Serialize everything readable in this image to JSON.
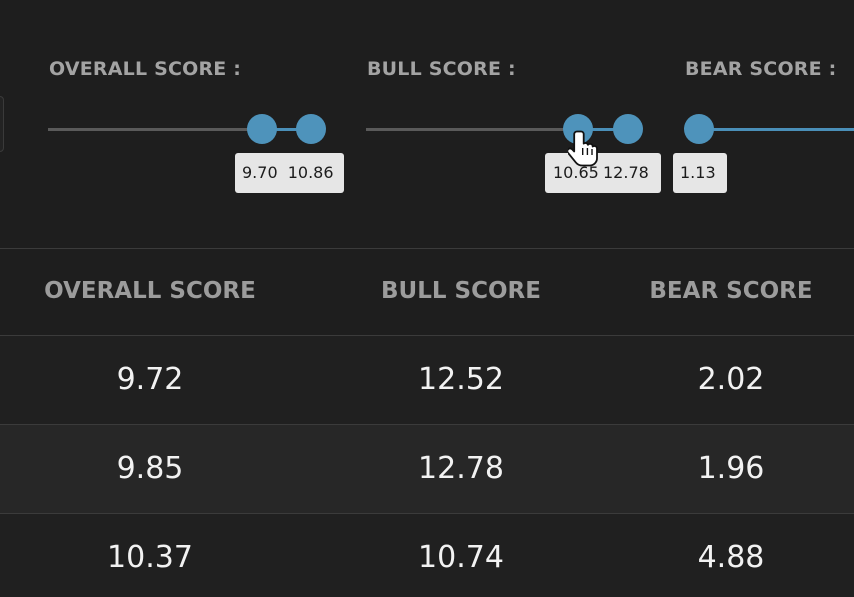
{
  "filters": {
    "overall": {
      "label": "OVERALL SCORE :",
      "min_display": "9.70",
      "max_display": "10.86"
    },
    "bull": {
      "label": "BULL SCORE :",
      "min_display": "10.65",
      "max_display": "12.78"
    },
    "bear": {
      "label": "BEAR SCORE :",
      "min_display": "1.13"
    }
  },
  "table": {
    "columns": [
      "OVERALL SCORE",
      "BULL SCORE",
      "BEAR SCORE"
    ],
    "rows": [
      [
        "9.72",
        "12.52",
        "2.02"
      ],
      [
        "9.85",
        "12.78",
        "1.96"
      ],
      [
        "10.37",
        "10.74",
        "4.88"
      ]
    ]
  },
  "colors": {
    "background": "#1e1e1e",
    "accent": "#4e93bb",
    "tooltip": "#e6e6e6"
  }
}
